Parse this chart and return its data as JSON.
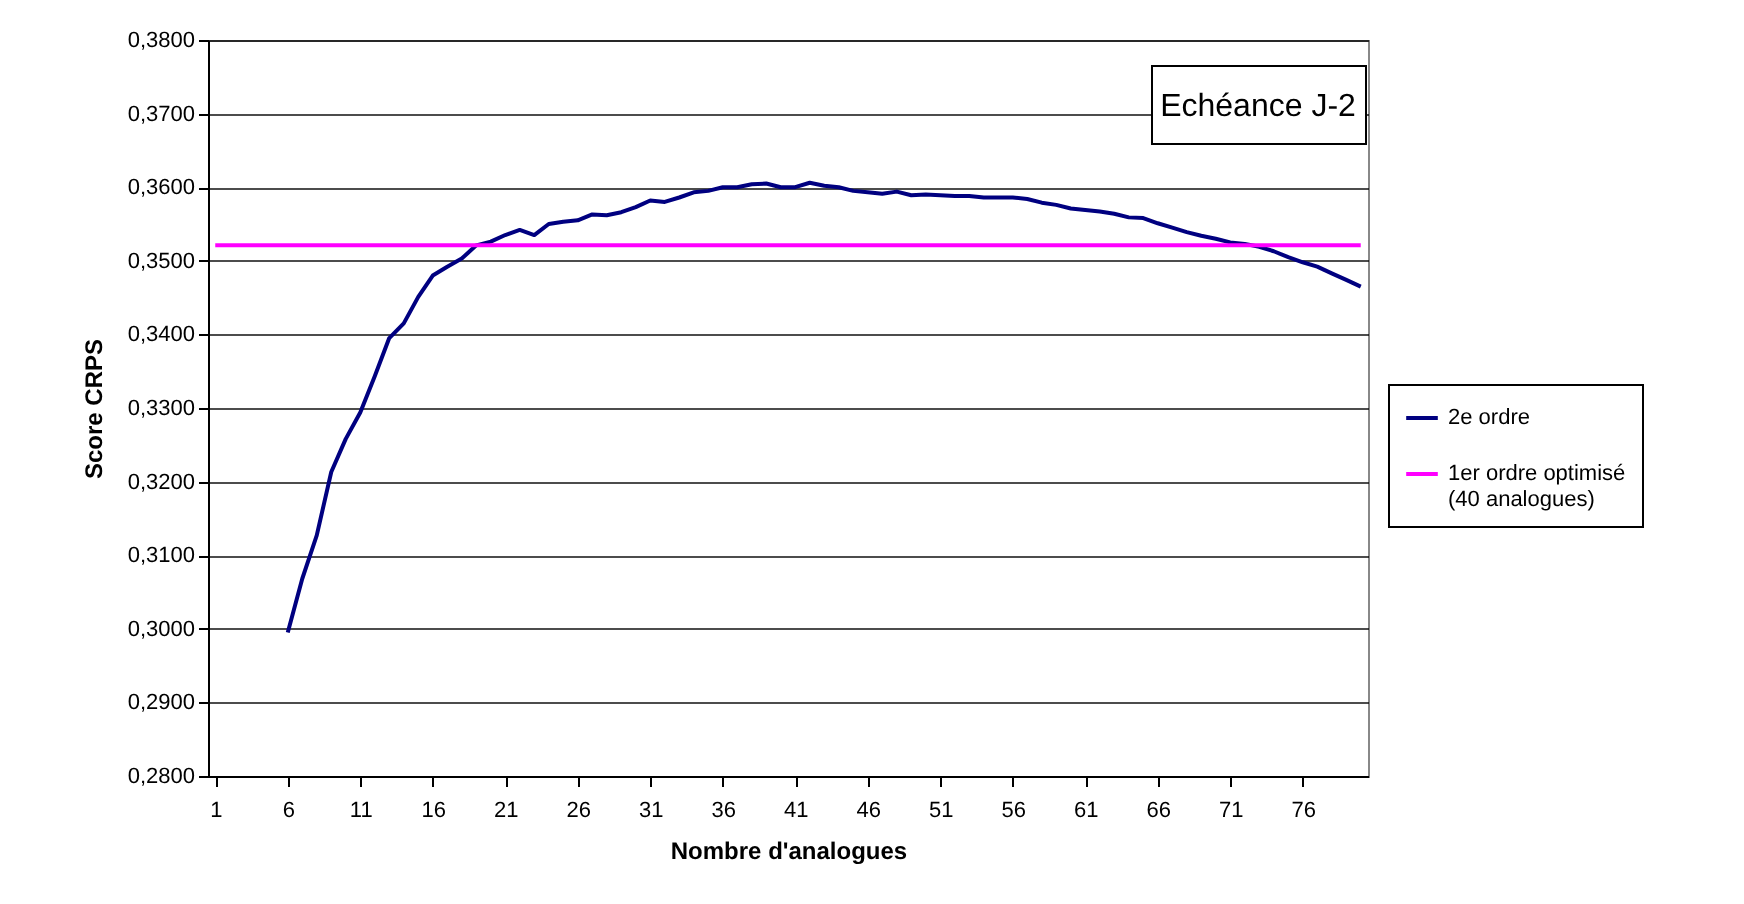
{
  "chart_data": {
    "type": "line",
    "xlabel": "Nombre d'analogues",
    "ylabel": "Score CRPS",
    "annotations": [
      "Echéance J-2"
    ],
    "x": [
      1,
      2,
      3,
      4,
      5,
      6,
      7,
      8,
      9,
      10,
      11,
      12,
      13,
      14,
      15,
      16,
      17,
      18,
      19,
      20,
      21,
      22,
      23,
      24,
      25,
      26,
      27,
      28,
      29,
      30,
      31,
      32,
      33,
      34,
      35,
      36,
      37,
      38,
      39,
      40,
      41,
      42,
      43,
      44,
      45,
      46,
      47,
      48,
      49,
      50,
      51,
      52,
      53,
      54,
      55,
      56,
      57,
      58,
      59,
      60,
      61,
      62,
      63,
      64,
      65,
      66,
      67,
      68,
      69,
      70,
      71,
      72,
      73,
      74,
      75,
      76,
      77,
      78,
      79,
      80
    ],
    "series": [
      {
        "name": "2e ordre",
        "color": "#000080",
        "values": [
          null,
          null,
          null,
          null,
          null,
          0.2995,
          0.3068,
          0.3127,
          0.3213,
          0.3258,
          0.3294,
          0.3343,
          0.3395,
          0.3415,
          0.3451,
          0.348,
          0.3492,
          0.3503,
          0.3521,
          0.3526,
          0.3535,
          0.3542,
          0.3535,
          0.355,
          0.3553,
          0.3555,
          0.3563,
          0.3562,
          0.3566,
          0.3573,
          0.3582,
          0.358,
          0.3586,
          0.3593,
          0.3595,
          0.36,
          0.36,
          0.3604,
          0.3605,
          0.36,
          0.36,
          0.3606,
          0.3602,
          0.36,
          0.3595,
          0.3593,
          0.3591,
          0.3594,
          0.3589,
          0.359,
          0.3589,
          0.3588,
          0.3588,
          0.3586,
          0.3586,
          0.3586,
          0.3584,
          0.3579,
          0.3576,
          0.3571,
          0.3569,
          0.3567,
          0.3564,
          0.3559,
          0.3558,
          0.3551,
          0.3545,
          0.3539,
          0.3534,
          0.353,
          0.3525,
          0.3523,
          0.3519,
          0.3513,
          0.3505,
          0.3498,
          0.3492,
          0.3483,
          0.3474,
          0.3465
        ]
      },
      {
        "name": "1er ordre optimisé (40 analogues)",
        "color": "#ff00ff",
        "values": [
          0.3521,
          0.3521,
          0.3521,
          0.3521,
          0.3521,
          0.3521,
          0.3521,
          0.3521,
          0.3521,
          0.3521,
          0.3521,
          0.3521,
          0.3521,
          0.3521,
          0.3521,
          0.3521,
          0.3521,
          0.3521,
          0.3521,
          0.3521,
          0.3521,
          0.3521,
          0.3521,
          0.3521,
          0.3521,
          0.3521,
          0.3521,
          0.3521,
          0.3521,
          0.3521,
          0.3521,
          0.3521,
          0.3521,
          0.3521,
          0.3521,
          0.3521,
          0.3521,
          0.3521,
          0.3521,
          0.3521,
          0.3521,
          0.3521,
          0.3521,
          0.3521,
          0.3521,
          0.3521,
          0.3521,
          0.3521,
          0.3521,
          0.3521,
          0.3521,
          0.3521,
          0.3521,
          0.3521,
          0.3521,
          0.3521,
          0.3521,
          0.3521,
          0.3521,
          0.3521,
          0.3521,
          0.3521,
          0.3521,
          0.3521,
          0.3521,
          0.3521,
          0.3521,
          0.3521,
          0.3521,
          0.3521,
          0.3521,
          0.3521,
          0.3521,
          0.3521,
          0.3521,
          0.3521,
          0.3521,
          0.3521,
          0.3521,
          0.3521
        ]
      }
    ],
    "xlim": [
      0.5,
      80.5
    ],
    "xticks": [
      1,
      6,
      11,
      16,
      21,
      26,
      31,
      36,
      41,
      46,
      51,
      56,
      61,
      66,
      71,
      76
    ],
    "ylim": [
      0.28,
      0.38
    ],
    "yticks": [
      {
        "value": 0.28,
        "label": "0,2800"
      },
      {
        "value": 0.29,
        "label": "0,2900"
      },
      {
        "value": 0.3,
        "label": "0,3000"
      },
      {
        "value": 0.31,
        "label": "0,3100"
      },
      {
        "value": 0.32,
        "label": "0,3200"
      },
      {
        "value": 0.33,
        "label": "0,3300"
      },
      {
        "value": 0.34,
        "label": "0,3400"
      },
      {
        "value": 0.35,
        "label": "0,3500"
      },
      {
        "value": 0.36,
        "label": "0,3600"
      },
      {
        "value": 0.37,
        "label": "0,3700"
      },
      {
        "value": 0.38,
        "label": "0,3800"
      }
    ],
    "grid": "y",
    "legend": "right",
    "line_style": "solid",
    "marker": "none"
  }
}
